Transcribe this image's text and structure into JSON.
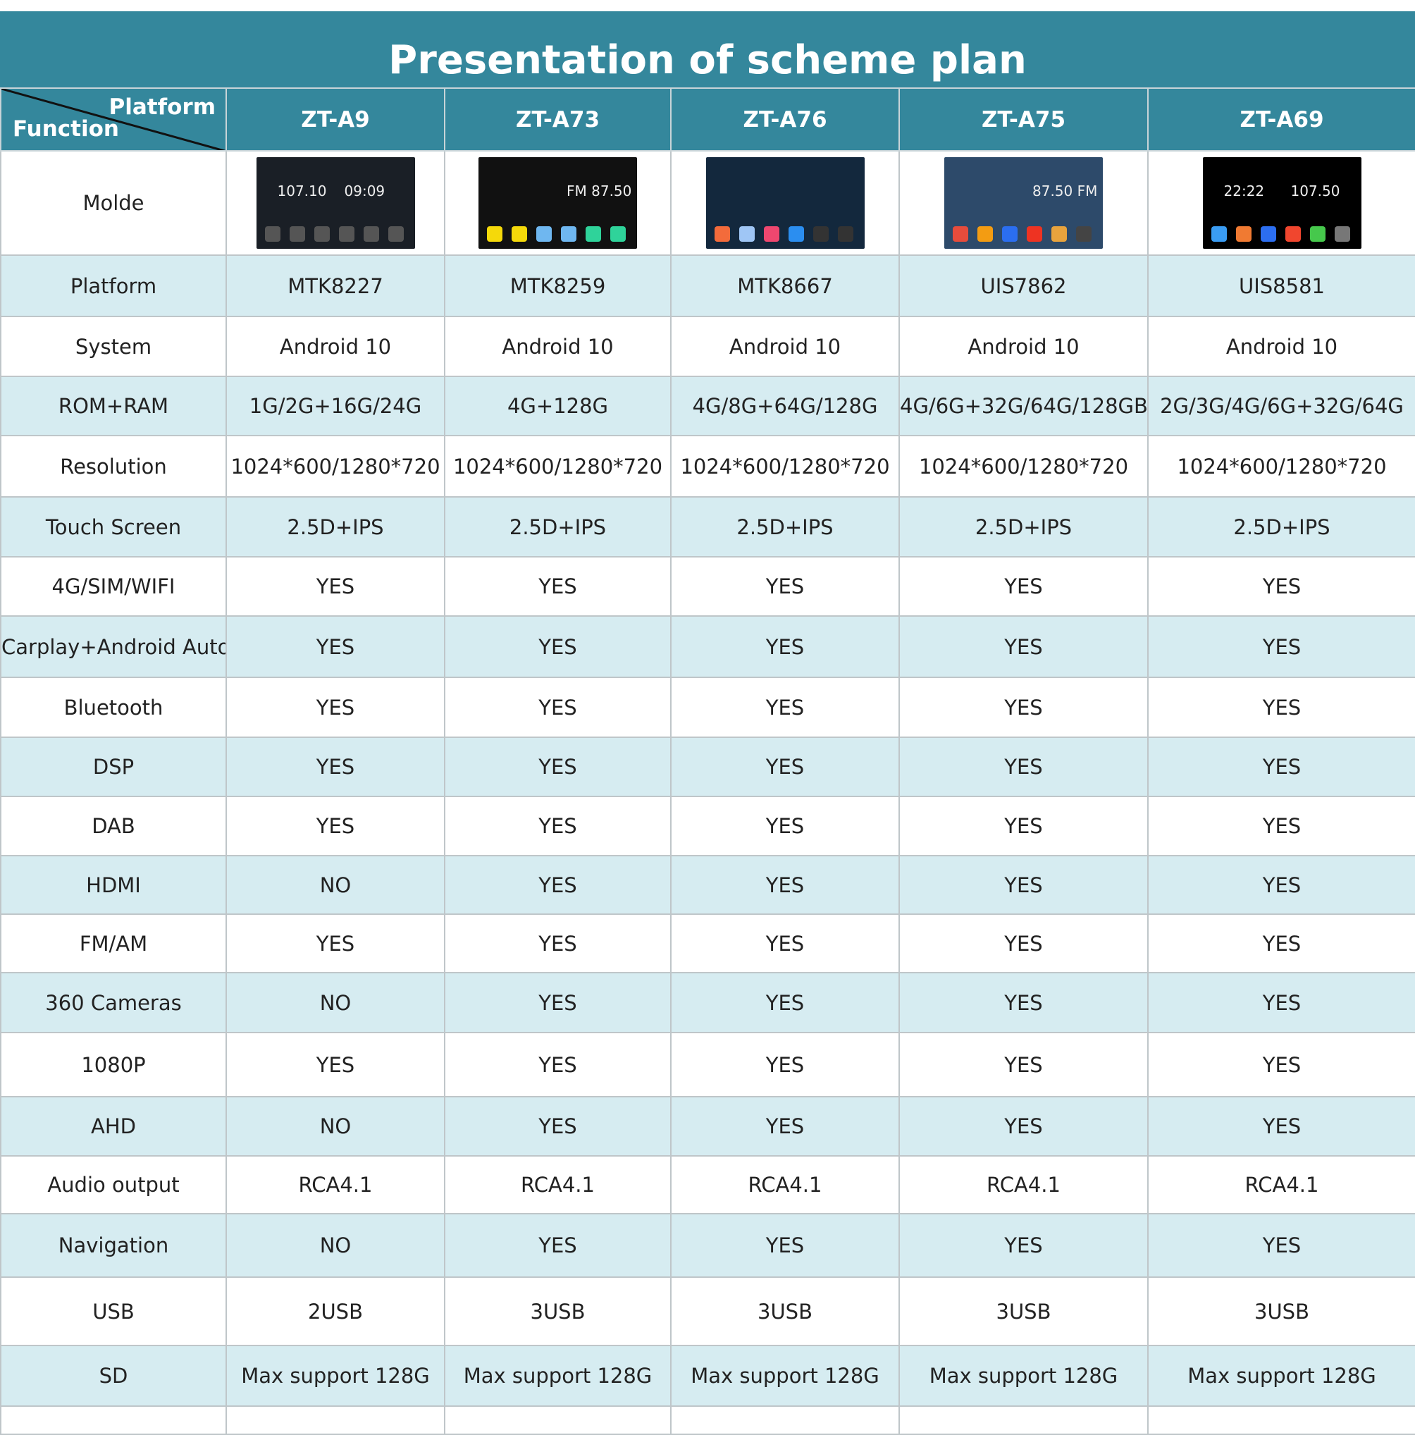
{
  "title": "Presentation of scheme plan",
  "corner": {
    "platform": "Platform",
    "function": "Function"
  },
  "models": [
    "ZT-A9",
    "ZT-A73",
    "ZT-A76",
    "ZT-A75",
    "ZT-A69"
  ],
  "molde_label": "Molde",
  "screens": [
    {
      "bg": "#1a1f26",
      "texts": [
        "107.10",
        "09:09"
      ],
      "icons": [
        "#555",
        "#555",
        "#555",
        "#555",
        "#555",
        "#555"
      ]
    },
    {
      "bg": "#111",
      "texts": [
        "",
        "FM 87.50"
      ],
      "icons": [
        "#f5d90a",
        "#f5d90a",
        "#6fb7f0",
        "#6fb7f0",
        "#2fd39a",
        "#2fd39a"
      ]
    },
    {
      "bg": "#13283d",
      "texts": [
        "",
        ""
      ],
      "icons": [
        "#f36b3b",
        "#9fc6f5",
        "#ef476f",
        "#2b8ef0",
        "#333",
        "#333"
      ]
    },
    {
      "bg": "#2d4a6a",
      "texts": [
        "",
        "87.50 FM"
      ],
      "icons": [
        "#e74c3c",
        "#f39c12",
        "#2b6ef0",
        "#e32",
        "#e8a33d",
        "#444"
      ]
    },
    {
      "bg": "#000",
      "texts": [
        "22:22",
        "107.50"
      ],
      "icons": [
        "#3a9cf3",
        "#f07a32",
        "#2c6ef0",
        "#f0462e",
        "#46c84c",
        "#777"
      ]
    }
  ],
  "rows": [
    {
      "label": "Platform",
      "values": [
        "MTK8227",
        "MTK8259",
        "MTK8667",
        "UIS7862",
        "UIS8581"
      ]
    },
    {
      "label": "System",
      "values": [
        "Android 10",
        "Android 10",
        "Android 10",
        "Android 10",
        "Android 10"
      ]
    },
    {
      "label": "ROM+RAM",
      "values": [
        "1G/2G+16G/24G",
        "4G+128G",
        "4G/8G+64G/128G",
        "4G/6G+32G/64G/128GB",
        "2G/3G/4G/6G+32G/64G"
      ]
    },
    {
      "label": "Resolution",
      "values": [
        "1024*600/1280*720",
        "1024*600/1280*720",
        "1024*600/1280*720",
        "1024*600/1280*720",
        "1024*600/1280*720"
      ]
    },
    {
      "label": "Touch Screen",
      "values": [
        "2.5D+IPS",
        "2.5D+IPS",
        "2.5D+IPS",
        "2.5D+IPS",
        "2.5D+IPS"
      ]
    },
    {
      "label": "4G/SIM/WIFI",
      "values": [
        "YES",
        "YES",
        "YES",
        "YES",
        "YES"
      ]
    },
    {
      "label": "Carplay+Android Auto",
      "values": [
        "YES",
        "YES",
        "YES",
        "YES",
        "YES"
      ]
    },
    {
      "label": "Bluetooth",
      "values": [
        "YES",
        "YES",
        "YES",
        "YES",
        "YES"
      ]
    },
    {
      "label": "DSP",
      "values": [
        "YES",
        "YES",
        "YES",
        "YES",
        "YES"
      ]
    },
    {
      "label": "DAB",
      "values": [
        "YES",
        "YES",
        "YES",
        "YES",
        "YES"
      ]
    },
    {
      "label": "HDMI",
      "values": [
        "NO",
        "YES",
        "YES",
        "YES",
        "YES"
      ]
    },
    {
      "label": "FM/AM",
      "values": [
        "YES",
        "YES",
        "YES",
        "YES",
        "YES"
      ]
    },
    {
      "label": "360 Cameras",
      "values": [
        "NO",
        "YES",
        "YES",
        "YES",
        "YES"
      ]
    },
    {
      "label": "1080P",
      "values": [
        "YES",
        "YES",
        "YES",
        "YES",
        "YES"
      ]
    },
    {
      "label": "AHD",
      "values": [
        "NO",
        "YES",
        "YES",
        "YES",
        "YES"
      ]
    },
    {
      "label": "Audio output",
      "values": [
        "RCA4.1",
        "RCA4.1",
        "RCA4.1",
        "RCA4.1",
        "RCA4.1"
      ]
    },
    {
      "label": "Navigation",
      "values": [
        "NO",
        "YES",
        "YES",
        "YES",
        "YES"
      ]
    },
    {
      "label": "USB",
      "values": [
        "2USB",
        "3USB",
        "3USB",
        "3USB",
        "3USB"
      ]
    },
    {
      "label": "SD",
      "values": [
        "Max support 128G",
        "Max support 128G",
        "Max support 128G",
        "Max support 128G",
        "Max support 128G"
      ]
    }
  ],
  "colors": {
    "header": "#34879c",
    "alt_row": "#d6ecf1"
  }
}
